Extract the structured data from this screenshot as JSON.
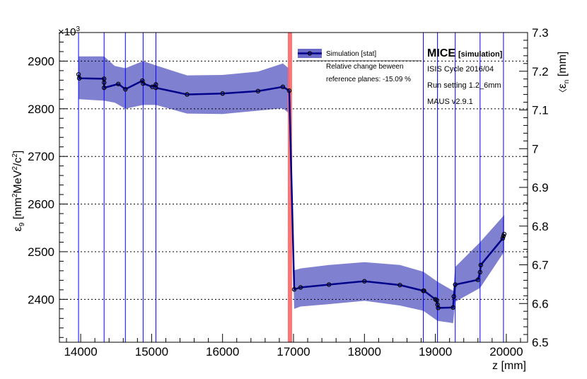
{
  "chart_data": {
    "type": "line",
    "xlabel": "z [mm]",
    "ylabel_left": "ε⊥ [mm²MeV²/c²]",
    "ylabel_left_parts": {
      "sym": "ε",
      "sub": "9",
      "unit_a": " [mm",
      "sup_a": "2",
      "unit_b": "MeV",
      "sup_b": "2",
      "unit_c": "/c",
      "sup_c": "2",
      "unit_d": "]"
    },
    "ylabel_right": "⟨εn⟩ [mm]",
    "ylabel_right_parts": {
      "bracket": "〈",
      "sym": "ε",
      "sub": "n",
      "unit": " [mm]"
    },
    "y_multiplier": "×10",
    "y_multiplier_exp": "3",
    "xlim": [
      13700,
      20300
    ],
    "ylim_left": [
      2310,
      2960
    ],
    "ylim_right": [
      6.5,
      7.3
    ],
    "x_ticks": [
      14000,
      15000,
      16000,
      17000,
      18000,
      19000,
      20000
    ],
    "x_tick_labels": [
      "14000",
      "15000",
      "16000",
      "17000",
      "18000",
      "19000",
      "20000"
    ],
    "y_ticks_left": [
      2400,
      2500,
      2600,
      2700,
      2800,
      2900
    ],
    "y_tick_labels_left": [
      "2400",
      "2500",
      "2600",
      "2700",
      "2800",
      "2900"
    ],
    "y_ticks_right": [
      6.5,
      6.6,
      6.7,
      6.8,
      6.9,
      7.0,
      7.1,
      7.2,
      7.3
    ],
    "y_tick_labels_right": [
      "6.5",
      "6.6",
      "6.7",
      "6.8",
      "6.9",
      "7",
      "7.1",
      "7.2",
      "7.3"
    ],
    "grid": "horizontal dotted at major left ticks",
    "series": [
      {
        "name": "Simulation [stat]",
        "color": "#00008b",
        "band_color": "#6a6ac8",
        "x": [
          13970,
          13980,
          14330,
          14330,
          14330,
          14530,
          14630,
          14870,
          14880,
          15010,
          15060,
          15060,
          15500,
          16000,
          16500,
          16850,
          16940,
          17010,
          17100,
          17500,
          18000,
          18500,
          18830,
          18840,
          19000,
          19020,
          19030,
          19040,
          19250,
          19260,
          19280,
          19600,
          19630,
          19640,
          19950,
          19960,
          19970
        ],
        "y": [
          2872,
          2864,
          2863,
          2855,
          2844,
          2852,
          2841,
          2859,
          2853,
          2846,
          2851,
          2844,
          2830,
          2832,
          2837,
          2846,
          2838,
          2421,
          2425,
          2431,
          2438,
          2430,
          2418,
          2418,
          2400,
          2398,
          2389,
          2382,
          2383,
          2406,
          2431,
          2441,
          2457,
          2472,
          2528,
          2533,
          2537
        ],
        "band": [
          [
            13970,
            2910,
            2820
          ],
          [
            14330,
            2910,
            2817
          ],
          [
            14480,
            2890,
            2813
          ],
          [
            14630,
            2885,
            2800
          ],
          [
            14880,
            2900,
            2808
          ],
          [
            15060,
            2891,
            2808
          ],
          [
            15500,
            2870,
            2790
          ],
          [
            16000,
            2871,
            2789
          ],
          [
            16500,
            2878,
            2796
          ],
          [
            16850,
            2895,
            2801
          ],
          [
            16940,
            2884,
            2790
          ],
          [
            17010,
            2461,
            2380
          ],
          [
            17100,
            2465,
            2385
          ],
          [
            17500,
            2472,
            2390
          ],
          [
            18000,
            2478,
            2397
          ],
          [
            18500,
            2472,
            2387
          ],
          [
            18830,
            2458,
            2376
          ],
          [
            19030,
            2437,
            2355
          ],
          [
            19250,
            2418,
            2350
          ],
          [
            19280,
            2468,
            2395
          ],
          [
            19630,
            2520,
            2424
          ],
          [
            19970,
            2577,
            2500
          ]
        ]
      }
    ],
    "vlines_z": [
      13970,
      14330,
      14630,
      14880,
      15060,
      18830,
      19030,
      19280,
      19630,
      19960
    ],
    "vline_color": "#0000ff",
    "absorber_z": 16950,
    "absorber_color": "#ff6666",
    "legend_position": "top-right",
    "annotations": {
      "legend_label": "Simulation [stat]",
      "relative_change_line1": "Relative change beween",
      "relative_change_line2": "reference planes: -15.09 %",
      "mice_title": "MICE",
      "mice_subtitle": "[simulation]",
      "cycle": "ISIS Cycle 2016/04",
      "run_setting": "Run setting 1.2_6mm",
      "maus": "MAUS v2.9.1"
    }
  }
}
